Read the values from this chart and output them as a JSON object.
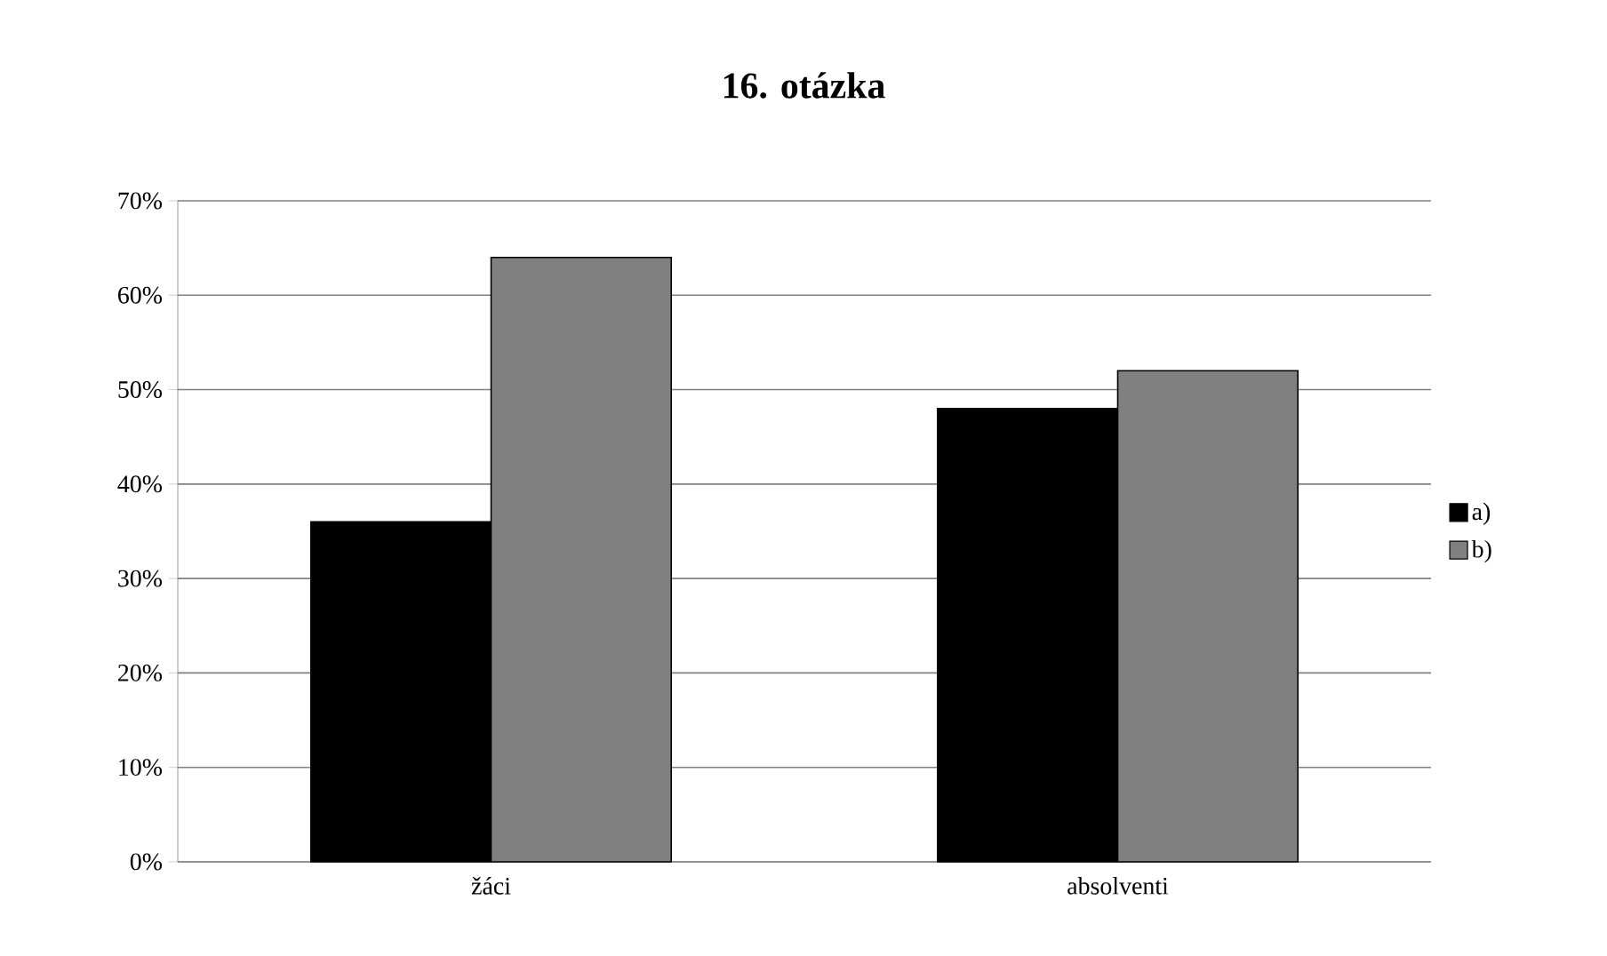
{
  "chart_data": {
    "type": "bar",
    "title": "16. otázka",
    "categories": [
      "žáci",
      "absolventi"
    ],
    "series": [
      {
        "name": "a)",
        "color": "#000000",
        "values": [
          36,
          48
        ]
      },
      {
        "name": "b)",
        "color": "#808080",
        "values": [
          64,
          52
        ]
      }
    ],
    "ylim": [
      0,
      70
    ],
    "yticks": [
      {
        "value": 0,
        "label": "0%"
      },
      {
        "value": 10,
        "label": "10%"
      },
      {
        "value": 20,
        "label": "20%"
      },
      {
        "value": 30,
        "label": "30%"
      },
      {
        "value": 40,
        "label": "40%"
      },
      {
        "value": 50,
        "label": "50%"
      },
      {
        "value": 60,
        "label": "60%"
      },
      {
        "value": 70,
        "label": "70%"
      }
    ],
    "grid": "y",
    "legend": "right"
  }
}
